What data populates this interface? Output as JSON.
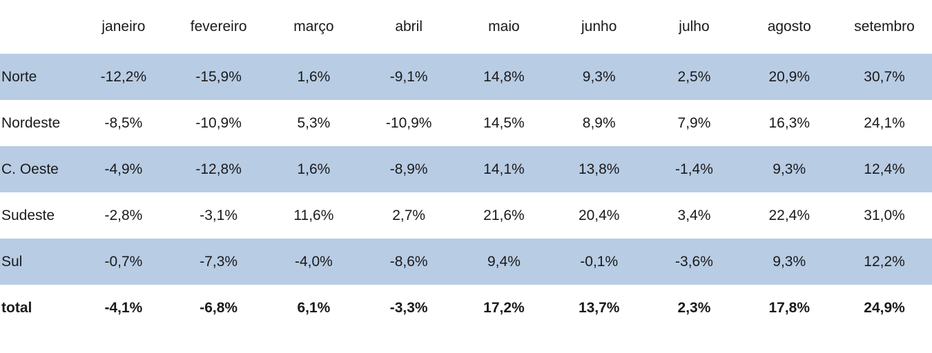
{
  "table": {
    "corner_label": "",
    "columns": [
      "janeiro",
      "fevereiro",
      "março",
      "abril",
      "maio",
      "junho",
      "julho",
      "agosto",
      "setembro"
    ],
    "rows": [
      {
        "label": "Norte",
        "shaded": true,
        "bold": false,
        "values": [
          "-12,2%",
          "-15,9%",
          "1,6%",
          "-9,1%",
          "14,8%",
          "9,3%",
          "2,5%",
          "20,9%",
          "30,7%"
        ]
      },
      {
        "label": "Nordeste",
        "shaded": false,
        "bold": false,
        "values": [
          "-8,5%",
          "-10,9%",
          "5,3%",
          "-10,9%",
          "14,5%",
          "8,9%",
          "7,9%",
          "16,3%",
          "24,1%"
        ]
      },
      {
        "label": "C. Oeste",
        "shaded": true,
        "bold": false,
        "values": [
          "-4,9%",
          "-12,8%",
          "1,6%",
          "-8,9%",
          "14,1%",
          "13,8%",
          "-1,4%",
          "9,3%",
          "12,4%"
        ]
      },
      {
        "label": "Sudeste",
        "shaded": false,
        "bold": false,
        "values": [
          "-2,8%",
          "-3,1%",
          "11,6%",
          "2,7%",
          "21,6%",
          "20,4%",
          "3,4%",
          "22,4%",
          "31,0%"
        ]
      },
      {
        "label": "Sul",
        "shaded": true,
        "bold": false,
        "values": [
          "-0,7%",
          "-7,3%",
          "-4,0%",
          "-8,6%",
          "9,4%",
          "-0,1%",
          "-3,6%",
          "9,3%",
          "12,2%"
        ]
      },
      {
        "label": "total",
        "shaded": false,
        "bold": true,
        "values": [
          "-4,1%",
          "-6,8%",
          "6,1%",
          "-3,3%",
          "17,2%",
          "13,7%",
          "2,3%",
          "17,8%",
          "24,9%"
        ]
      }
    ],
    "colors": {
      "row_band": "#b8cce4",
      "text": "#1a1a1a",
      "background": "#ffffff"
    }
  },
  "chart_data": {
    "type": "table",
    "title": "",
    "categories": [
      "janeiro",
      "fevereiro",
      "março",
      "abril",
      "maio",
      "junho",
      "julho",
      "agosto",
      "setembro"
    ],
    "series": [
      {
        "name": "Norte",
        "values": [
          -12.2,
          -15.9,
          1.6,
          -9.1,
          14.8,
          9.3,
          2.5,
          20.9,
          30.7
        ]
      },
      {
        "name": "Nordeste",
        "values": [
          -8.5,
          -10.9,
          5.3,
          -10.9,
          14.5,
          8.9,
          7.9,
          16.3,
          24.1
        ]
      },
      {
        "name": "C. Oeste",
        "values": [
          -4.9,
          -12.8,
          1.6,
          -8.9,
          14.1,
          13.8,
          -1.4,
          9.3,
          12.4
        ]
      },
      {
        "name": "Sudeste",
        "values": [
          -2.8,
          -3.1,
          11.6,
          2.7,
          21.6,
          20.4,
          3.4,
          22.4,
          31.0
        ]
      },
      {
        "name": "Sul",
        "values": [
          -0.7,
          -7.3,
          -4.0,
          -8.6,
          9.4,
          -0.1,
          -3.6,
          9.3,
          12.2
        ]
      },
      {
        "name": "total",
        "values": [
          -4.1,
          -6.8,
          6.1,
          -3.3,
          17.2,
          13.7,
          2.3,
          17.8,
          24.9
        ]
      }
    ],
    "unit": "%",
    "number_format": "pt-BR decimal comma, one decimal place",
    "layout": {
      "banded_rows": true,
      "band_color": "#b8cce4",
      "gridlines": false,
      "last_row_bold": true
    }
  }
}
